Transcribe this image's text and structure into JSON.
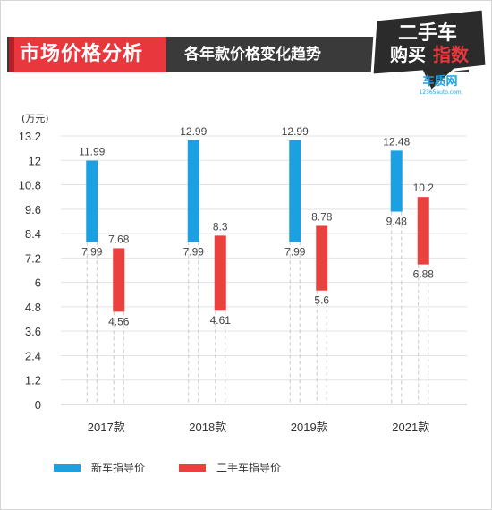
{
  "header": {
    "title": "市场价格分析",
    "subtitle": "各年款价格变化趋势"
  },
  "logo": {
    "line1": "二手车",
    "line2a": "购买",
    "line2b": "指数",
    "brand": "车质网",
    "site": "12365auto.com"
  },
  "colors": {
    "new_car": "#1ba1e2",
    "used_car": "#e8413e",
    "header_dark": "#3a3a3a",
    "header_red": "#e8383d"
  },
  "chart_data": {
    "type": "floating-bar",
    "unit_label": "(万元)",
    "ylim": [
      0,
      13.2
    ],
    "yticks": [
      "0",
      "1.2",
      "2.4",
      "3.6",
      "4.8",
      "6",
      "7.2",
      "8.4",
      "9.6",
      "10.8",
      "12",
      "13.2"
    ],
    "categories": [
      "2017款",
      "2018款",
      "2019款",
      "2021款"
    ],
    "series": [
      {
        "name": "新车指导价",
        "low": [
          7.99,
          7.99,
          7.99,
          9.48
        ],
        "high": [
          11.99,
          12.99,
          12.99,
          12.48
        ],
        "low_labels": [
          "7.99",
          "7.99",
          "7.99",
          "9.48"
        ],
        "high_labels": [
          "11.99",
          "12.99",
          "12.99",
          "12.48"
        ]
      },
      {
        "name": "二手车指导价",
        "low": [
          4.56,
          4.61,
          5.6,
          6.88
        ],
        "high": [
          7.68,
          8.3,
          8.78,
          10.2
        ],
        "low_labels": [
          "4.56",
          "4.61",
          "5.6",
          "6.88"
        ],
        "high_labels": [
          "7.68",
          "8.3",
          "8.78",
          "10.2"
        ]
      }
    ],
    "grid": "horizontal"
  }
}
